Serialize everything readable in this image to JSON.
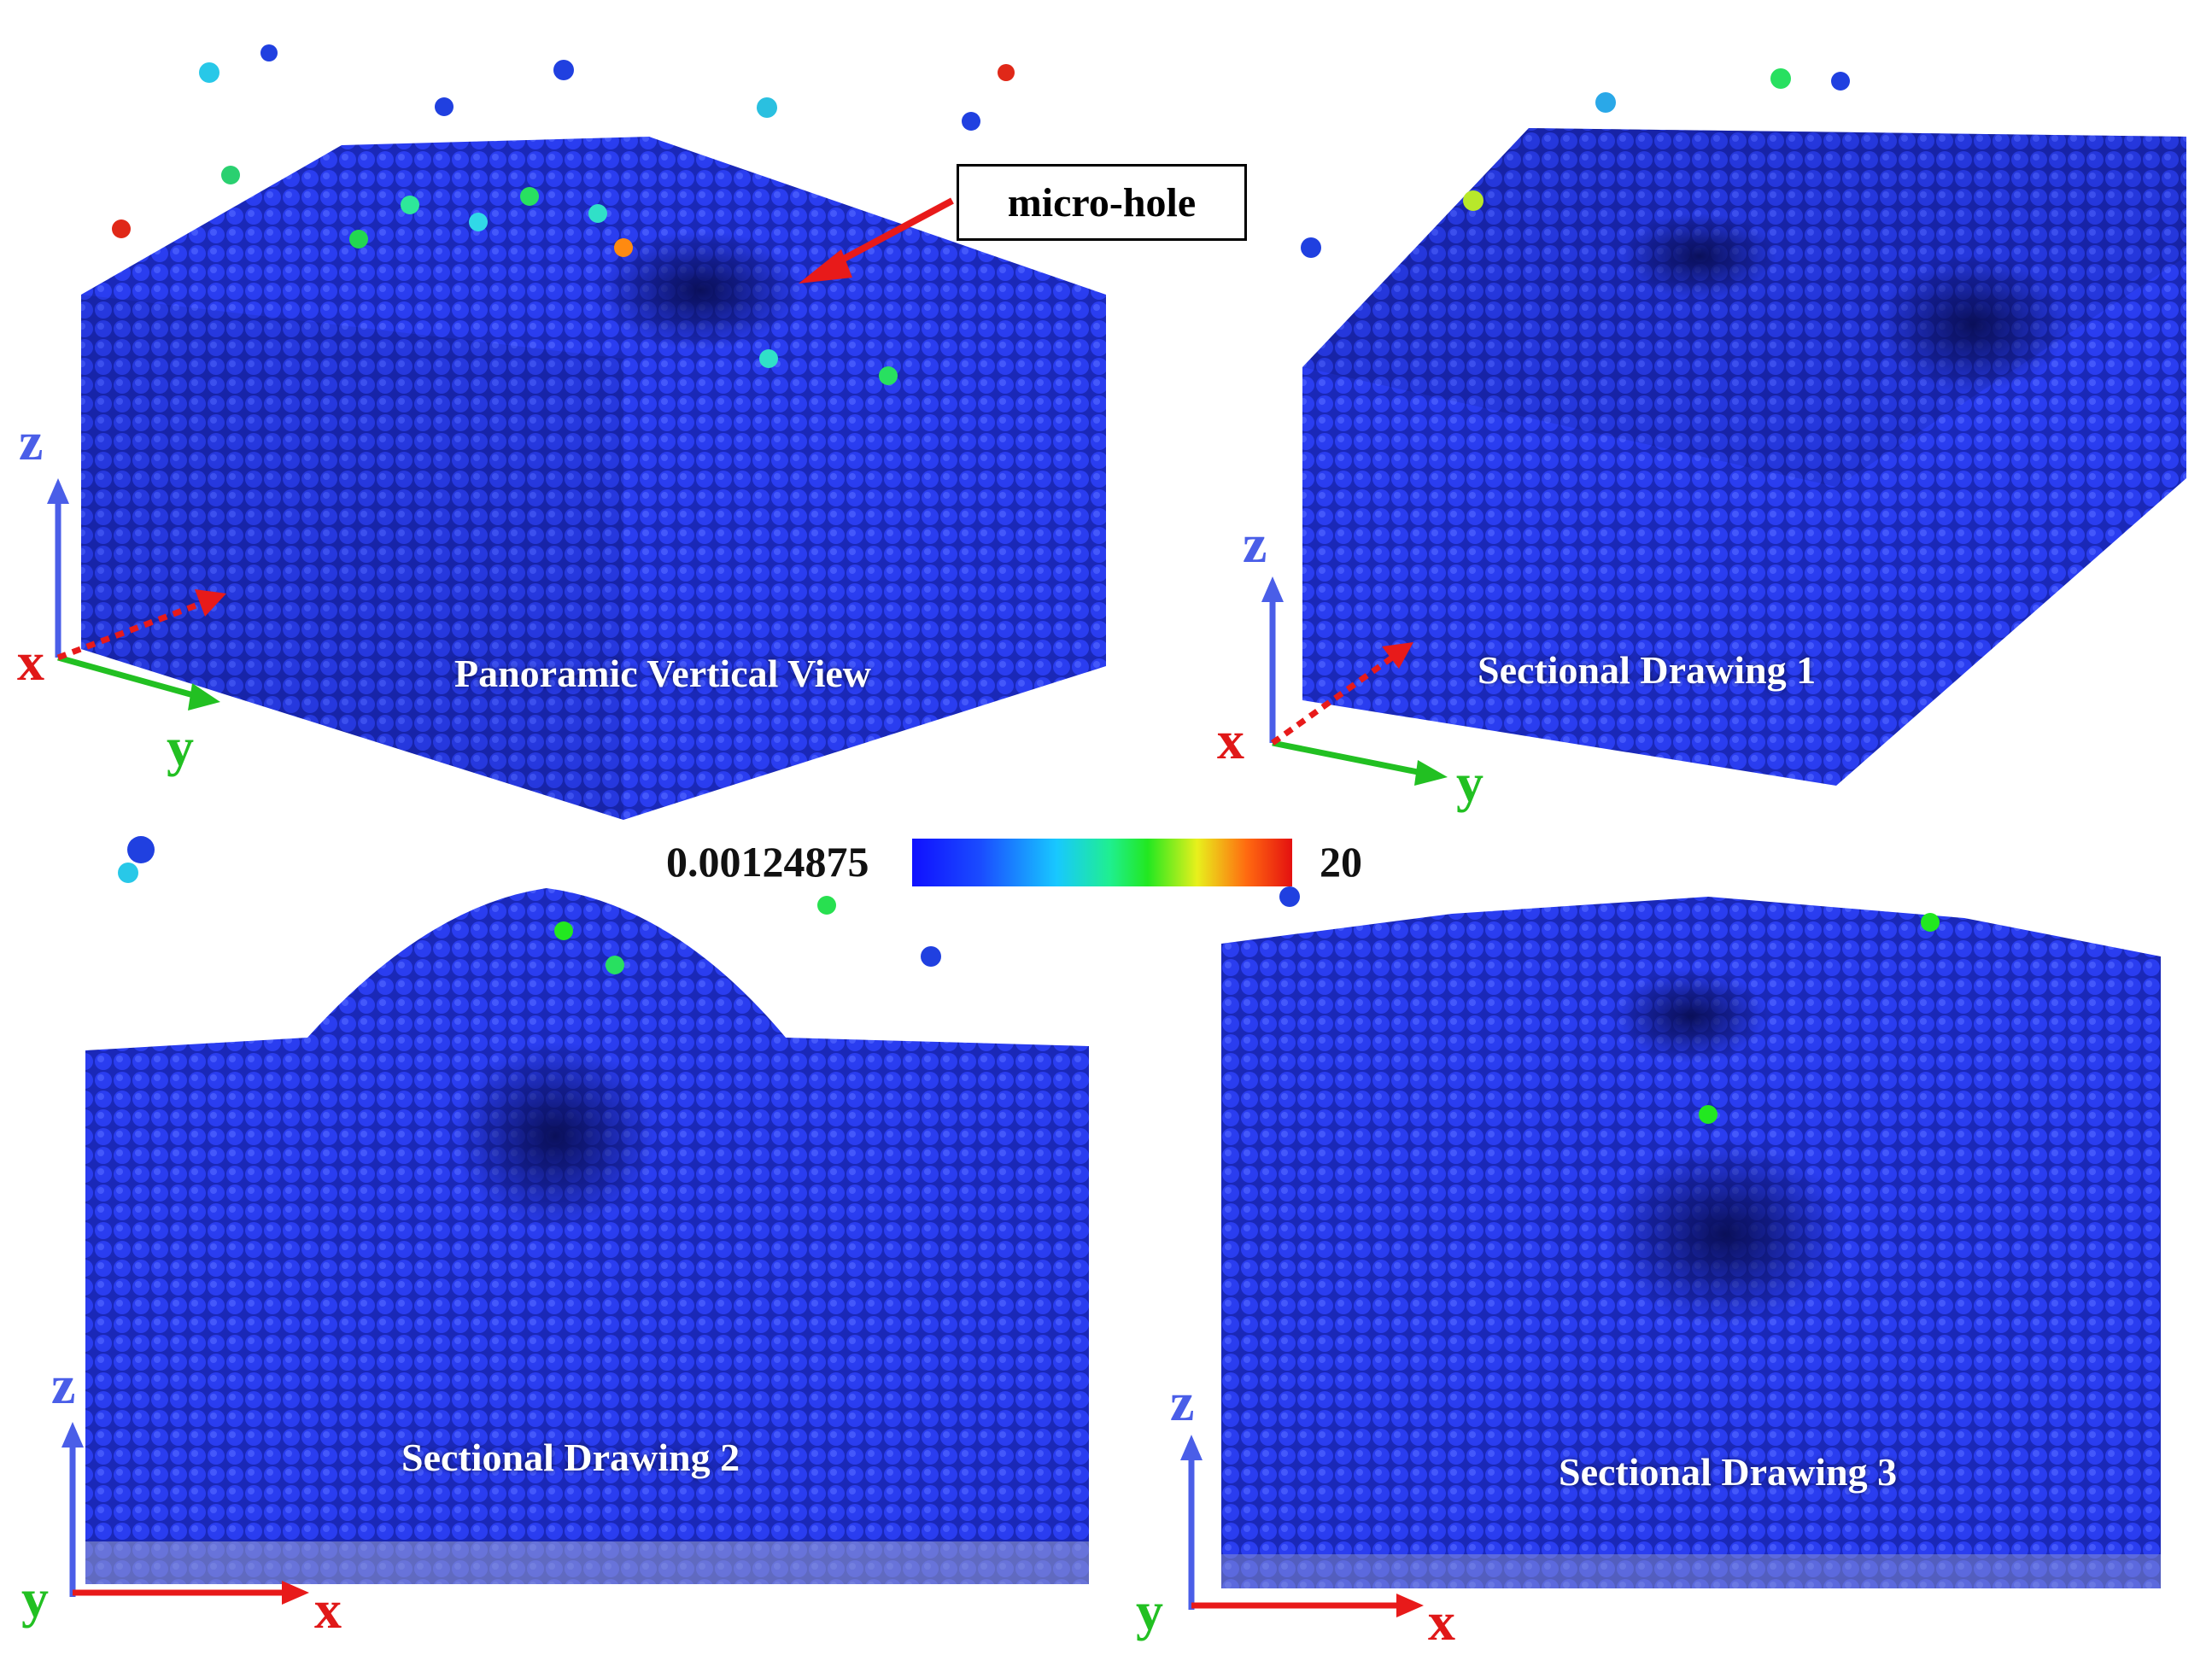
{
  "panels": [
    {
      "title": "Panoramic Vertical View"
    },
    {
      "title": "Sectional Drawing 1"
    },
    {
      "title": "Sectional Drawing 2"
    },
    {
      "title": "Sectional Drawing 3"
    }
  ],
  "annotation": {
    "label": "micro-hole"
  },
  "colorbar": {
    "min_label": "0.00124875",
    "max_label": "20"
  },
  "axes": {
    "x": "x",
    "y": "y",
    "z": "z"
  },
  "colors": {
    "atom_base": "#1c2fd6",
    "axis_x": "#e01818",
    "axis_y": "#22c022",
    "axis_z": "#4a5ee8",
    "arrow": "#e81a1a"
  }
}
